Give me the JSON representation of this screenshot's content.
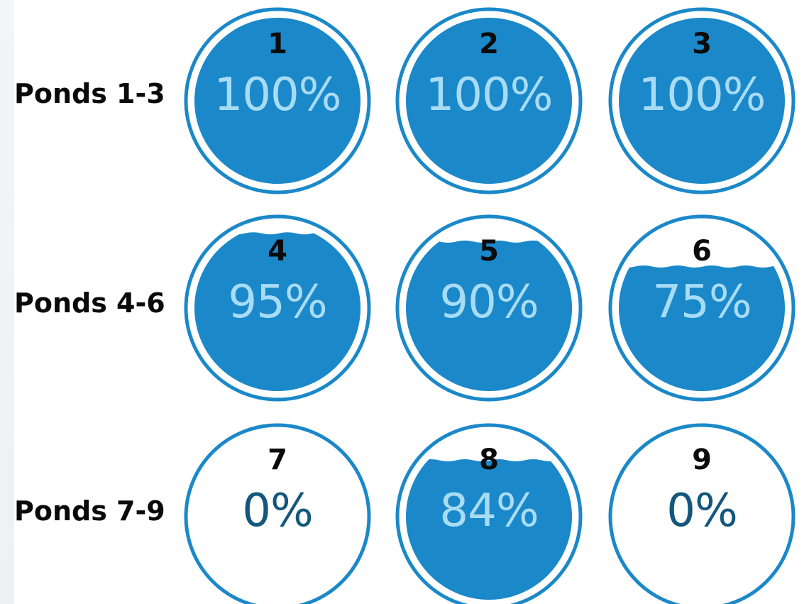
{
  "colors": {
    "water": "#1a88c9",
    "ring": "#1a88c9",
    "text_on_water": "#a8dcf5",
    "text_empty": "#13577d"
  },
  "rows": [
    {
      "label": "Ponds 1-3"
    },
    {
      "label": "Ponds 4-6"
    },
    {
      "label": "Ponds 7-9"
    }
  ],
  "ponds": [
    {
      "number": "1",
      "percent_text": "100%",
      "level": 1.0
    },
    {
      "number": "2",
      "percent_text": "100%",
      "level": 1.0
    },
    {
      "number": "3",
      "percent_text": "100%",
      "level": 1.0
    },
    {
      "number": "4",
      "percent_text": "95%",
      "level": 0.95
    },
    {
      "number": "5",
      "percent_text": "90%",
      "level": 0.9
    },
    {
      "number": "6",
      "percent_text": "75%",
      "level": 0.75
    },
    {
      "number": "7",
      "percent_text": "0%",
      "level": 0.0
    },
    {
      "number": "8",
      "percent_text": "84%",
      "level": 0.84
    },
    {
      "number": "9",
      "percent_text": "0%",
      "level": 0.0
    }
  ]
}
